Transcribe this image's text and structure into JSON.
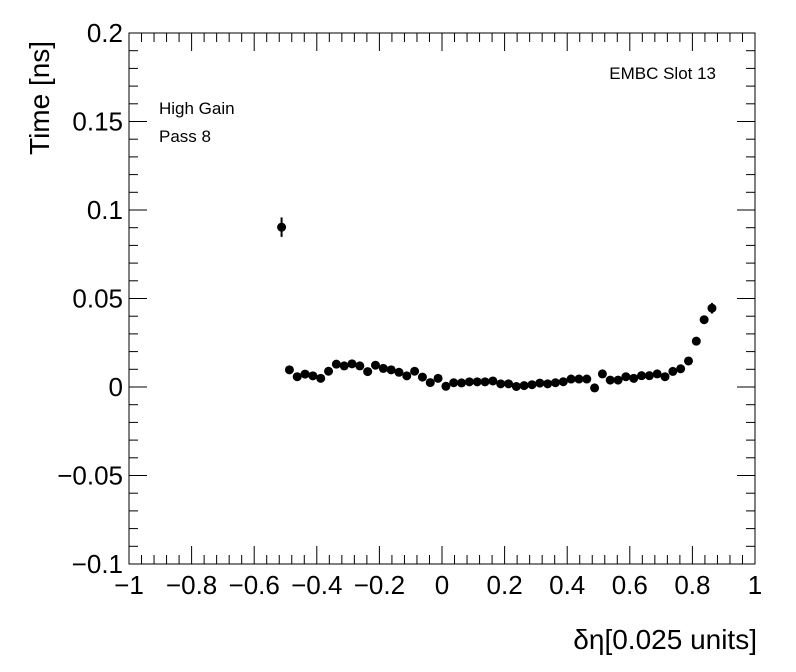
{
  "chart_data": {
    "type": "scatter",
    "title": "",
    "xlabel": "δη[0.025 units]",
    "ylabel": "Time [ns]",
    "xlim": [
      -1,
      1
    ],
    "ylim": [
      -0.1,
      0.2
    ],
    "x_ticks": [
      -1,
      -0.8,
      -0.6,
      -0.4,
      -0.2,
      0,
      0.2,
      0.4,
      0.6,
      0.8,
      1
    ],
    "x_tick_labels": [
      "−1",
      "−0.8",
      "−0.6",
      "−0.4",
      "−0.2",
      "0",
      "0.2",
      "0.4",
      "0.6",
      "0.8",
      "1"
    ],
    "y_ticks": [
      -0.1,
      -0.05,
      0,
      0.05,
      0.1,
      0.15,
      0.2
    ],
    "y_tick_labels": [
      "−0.1",
      "−0.05",
      "0",
      "0.05",
      "0.1",
      "0.15",
      "0.2"
    ],
    "annotations": {
      "gain": "High Gain",
      "pass": "Pass 8",
      "slot": "EMBC Slot 13"
    },
    "marker_color": "#000000",
    "points": [
      {
        "x": -0.5125,
        "y": 0.0903,
        "err": 0.0055
      },
      {
        "x": -0.4875,
        "y": 0.0097,
        "err": 0.0015
      },
      {
        "x": -0.4625,
        "y": 0.0058,
        "err": 0.0012
      },
      {
        "x": -0.4375,
        "y": 0.0073,
        "err": 0.0012
      },
      {
        "x": -0.4125,
        "y": 0.0063,
        "err": 0.0012
      },
      {
        "x": -0.3875,
        "y": 0.0049,
        "err": 0.0012
      },
      {
        "x": -0.3625,
        "y": 0.0089,
        "err": 0.0012
      },
      {
        "x": -0.3375,
        "y": 0.0129,
        "err": 0.0012
      },
      {
        "x": -0.3125,
        "y": 0.0119,
        "err": 0.0012
      },
      {
        "x": -0.2875,
        "y": 0.0131,
        "err": 0.0012
      },
      {
        "x": -0.2625,
        "y": 0.0119,
        "err": 0.0012
      },
      {
        "x": -0.2375,
        "y": 0.0087,
        "err": 0.0012
      },
      {
        "x": -0.2125,
        "y": 0.0123,
        "err": 0.0012
      },
      {
        "x": -0.1875,
        "y": 0.0105,
        "err": 0.0012
      },
      {
        "x": -0.1625,
        "y": 0.0097,
        "err": 0.0012
      },
      {
        "x": -0.1375,
        "y": 0.0083,
        "err": 0.0012
      },
      {
        "x": -0.1125,
        "y": 0.0063,
        "err": 0.0012
      },
      {
        "x": -0.0875,
        "y": 0.0089,
        "err": 0.0012
      },
      {
        "x": -0.0625,
        "y": 0.0056,
        "err": 0.0012
      },
      {
        "x": -0.0375,
        "y": 0.0025,
        "err": 0.0012
      },
      {
        "x": -0.0125,
        "y": 0.0049,
        "err": 0.0012
      },
      {
        "x": 0.0125,
        "y": 0.0004,
        "err": 0.0012
      },
      {
        "x": 0.0375,
        "y": 0.0024,
        "err": 0.0012
      },
      {
        "x": 0.0625,
        "y": 0.0023,
        "err": 0.0012
      },
      {
        "x": 0.0875,
        "y": 0.0029,
        "err": 0.0012
      },
      {
        "x": 0.1125,
        "y": 0.0029,
        "err": 0.0012
      },
      {
        "x": 0.1375,
        "y": 0.0029,
        "err": 0.0012
      },
      {
        "x": 0.1625,
        "y": 0.0034,
        "err": 0.0012
      },
      {
        "x": 0.1875,
        "y": 0.0018,
        "err": 0.0012
      },
      {
        "x": 0.2125,
        "y": 0.0018,
        "err": 0.0012
      },
      {
        "x": 0.2375,
        "y": 0.0003,
        "err": 0.0012
      },
      {
        "x": 0.2625,
        "y": 0.0008,
        "err": 0.0012
      },
      {
        "x": 0.2875,
        "y": 0.0013,
        "err": 0.0012
      },
      {
        "x": 0.3125,
        "y": 0.0022,
        "err": 0.0012
      },
      {
        "x": 0.3375,
        "y": 0.0018,
        "err": 0.0012
      },
      {
        "x": 0.3625,
        "y": 0.0024,
        "err": 0.0012
      },
      {
        "x": 0.3875,
        "y": 0.003,
        "err": 0.0012
      },
      {
        "x": 0.4125,
        "y": 0.0045,
        "err": 0.0012
      },
      {
        "x": 0.4375,
        "y": 0.0045,
        "err": 0.0012
      },
      {
        "x": 0.4625,
        "y": 0.0045,
        "err": 0.0012
      },
      {
        "x": 0.4875,
        "y": -0.0005,
        "err": 0.0012
      },
      {
        "x": 0.5125,
        "y": 0.0074,
        "err": 0.0012
      },
      {
        "x": 0.5375,
        "y": 0.0039,
        "err": 0.0012
      },
      {
        "x": 0.5625,
        "y": 0.0039,
        "err": 0.0012
      },
      {
        "x": 0.5875,
        "y": 0.0058,
        "err": 0.0012
      },
      {
        "x": 0.6125,
        "y": 0.0049,
        "err": 0.0012
      },
      {
        "x": 0.6375,
        "y": 0.0064,
        "err": 0.0012
      },
      {
        "x": 0.6625,
        "y": 0.0064,
        "err": 0.0012
      },
      {
        "x": 0.6875,
        "y": 0.0074,
        "err": 0.0012
      },
      {
        "x": 0.7125,
        "y": 0.0058,
        "err": 0.0012
      },
      {
        "x": 0.7375,
        "y": 0.0088,
        "err": 0.0012
      },
      {
        "x": 0.7625,
        "y": 0.0103,
        "err": 0.0012
      },
      {
        "x": 0.7875,
        "y": 0.0147,
        "err": 0.0012
      },
      {
        "x": 0.8125,
        "y": 0.0259,
        "err": 0.0015
      },
      {
        "x": 0.8375,
        "y": 0.038,
        "err": 0.0018
      },
      {
        "x": 0.8625,
        "y": 0.0445,
        "err": 0.003
      }
    ]
  }
}
